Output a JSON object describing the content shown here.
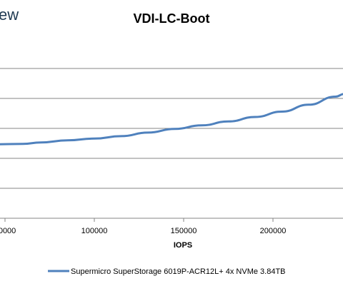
{
  "brand_fragment": "ew",
  "chart_data": {
    "type": "line",
    "title": "VDI-LC-Boot",
    "xlabel": "IOPS",
    "ylabel": "",
    "x_tick_labels": [
      "00000",
      "100000",
      "150000",
      "200000"
    ],
    "xlim": [
      45000,
      240000
    ],
    "ylim": [
      0,
      6
    ],
    "grid": true,
    "legend_position": "bottom",
    "series": [
      {
        "name": "Supermicro SuperStorage 6019P-ACR12L+ 4x NVMe 3.84TB",
        "color": "#4f81bd",
        "x": [
          45000,
          60000,
          70000,
          85000,
          100000,
          115000,
          130000,
          145000,
          160000,
          175000,
          190000,
          205000,
          220000,
          235000,
          240000
        ],
        "y": [
          2.47,
          2.48,
          2.53,
          2.6,
          2.66,
          2.74,
          2.86,
          2.98,
          3.1,
          3.23,
          3.38,
          3.56,
          3.79,
          4.06,
          4.15
        ]
      }
    ]
  }
}
